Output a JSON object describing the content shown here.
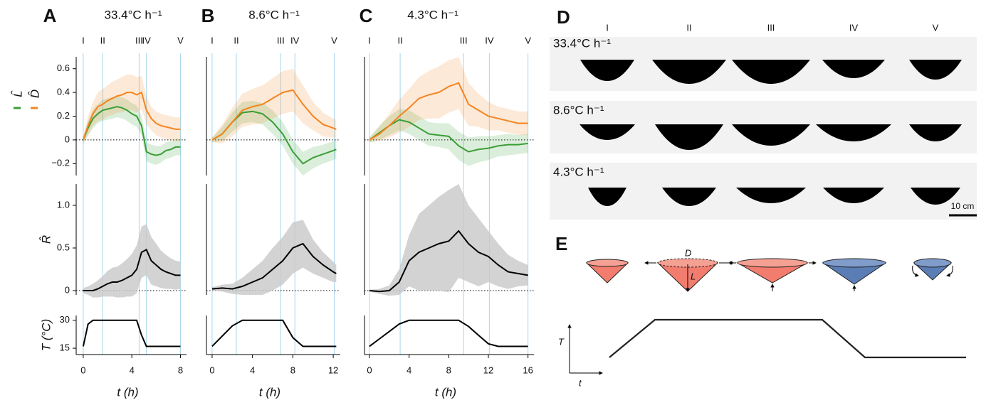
{
  "chart_data": [
    {
      "type": "line",
      "label": "A",
      "title": "33.4°C h⁻¹",
      "xlabel": "t (h)",
      "xlim": [
        -0.58,
        8.5
      ],
      "xticks": [
        0,
        4,
        8
      ],
      "phases": {
        "labels": [
          "I",
          "II",
          "III",
          "IV",
          "V"
        ],
        "x": [
          0,
          1.6,
          4.6,
          5.2,
          8.0
        ]
      },
      "x": [
        0,
        0.4,
        0.8,
        1.2,
        1.6,
        2.0,
        2.4,
        2.8,
        3.2,
        3.6,
        4.0,
        4.4,
        4.8,
        5.2,
        5.6,
        6.0,
        6.4,
        6.8,
        7.2,
        7.6,
        8.0
      ],
      "subplots": [
        {
          "ylim": [
            -0.3,
            0.7
          ],
          "yticks": [
            {
              "value": -0.2,
              "label": "−0.2"
            },
            0,
            0.2,
            0.4,
            0.6
          ],
          "zero_line": true,
          "series": [
            {
              "name": "L̂",
              "color": "#3a9e35",
              "values": [
                0,
                0.1,
                0.18,
                0.22,
                0.25,
                0.26,
                0.27,
                0.28,
                0.27,
                0.25,
                0.22,
                0.2,
                0.12,
                -0.1,
                -0.12,
                -0.13,
                -0.12,
                -0.09,
                -0.08,
                -0.06,
                -0.06
              ],
              "error": [
                0.03,
                0.06,
                0.08,
                0.08,
                0.09,
                0.09,
                0.09,
                0.09,
                0.09,
                0.09,
                0.09,
                0.09,
                0.08,
                0.08,
                0.08,
                0.08,
                0.07,
                0.07,
                0.07,
                0.07,
                0.07
              ]
            },
            {
              "name": "D̂",
              "color": "#f5841f",
              "values": [
                0,
                0.12,
                0.22,
                0.28,
                0.3,
                0.33,
                0.35,
                0.37,
                0.38,
                0.4,
                0.4,
                0.38,
                0.4,
                0.25,
                0.18,
                0.14,
                0.12,
                0.11,
                0.1,
                0.09,
                0.09
              ],
              "error": [
                0.03,
                0.08,
                0.1,
                0.12,
                0.13,
                0.13,
                0.14,
                0.14,
                0.15,
                0.15,
                0.15,
                0.15,
                0.14,
                0.12,
                0.1,
                0.1,
                0.1,
                0.1,
                0.1,
                0.1,
                0.1
              ]
            }
          ]
        },
        {
          "ylim": [
            -0.05,
            1.25
          ],
          "yticks": [
            0,
            0.5,
            {
              "value": 1.0,
              "label": "1.0"
            }
          ],
          "ylabel": "R̂",
          "zero_line": true,
          "series": [
            {
              "color": "#000000",
              "values": [
                0,
                0,
                0,
                0.02,
                0.05,
                0.08,
                0.1,
                0.1,
                0.12,
                0.15,
                0.18,
                0.25,
                0.45,
                0.48,
                0.35,
                0.3,
                0.25,
                0.22,
                0.2,
                0.18,
                0.18
              ],
              "error": [
                0.03,
                0.05,
                0.08,
                0.1,
                0.12,
                0.15,
                0.17,
                0.18,
                0.2,
                0.22,
                0.25,
                0.28,
                0.3,
                0.3,
                0.28,
                0.25,
                0.22,
                0.2,
                0.18,
                0.17,
                0.16
              ]
            }
          ]
        },
        {
          "ylim": [
            11.6,
            32.6
          ],
          "yticks": [
            15,
            30
          ],
          "ylabel": "T (°C)",
          "series": [
            {
              "color": "#000000",
              "values": [
                16,
                28,
                30,
                30,
                30,
                30,
                30,
                30,
                30,
                30,
                30,
                30,
                22,
                16,
                16,
                16,
                16,
                16,
                16,
                16,
                16
              ]
            }
          ]
        }
      ]
    },
    {
      "type": "line",
      "label": "B",
      "title": "8.6°C h⁻¹",
      "xlabel": "t (h)",
      "xlim": [
        -0.56,
        12.7
      ],
      "xticks": [
        0,
        4,
        8,
        12
      ],
      "phases": {
        "labels": [
          "I",
          "II",
          "III",
          "IV",
          "V"
        ],
        "x": [
          0,
          2.4,
          6.8,
          8.2,
          12.1
        ]
      },
      "x": [
        0,
        1,
        2,
        3,
        4,
        5,
        6,
        7,
        8,
        9,
        10,
        11,
        12,
        12.3
      ],
      "subplots": [
        {
          "ylim": [
            -0.3,
            0.7
          ],
          "zero_line": true,
          "series": [
            {
              "color": "#3a9e35",
              "values": [
                0,
                0.05,
                0.15,
                0.23,
                0.24,
                0.22,
                0.15,
                0.05,
                -0.1,
                -0.2,
                -0.15,
                -0.12,
                -0.09,
                -0.08
              ],
              "error": [
                0.02,
                0.06,
                0.08,
                0.09,
                0.09,
                0.09,
                0.1,
                0.1,
                0.1,
                0.1,
                0.09,
                0.08,
                0.08,
                0.08
              ]
            },
            {
              "color": "#f5841f",
              "values": [
                0,
                0.05,
                0.15,
                0.25,
                0.28,
                0.3,
                0.35,
                0.4,
                0.42,
                0.3,
                0.2,
                0.13,
                0.1,
                0.09
              ],
              "error": [
                0.02,
                0.08,
                0.12,
                0.14,
                0.15,
                0.16,
                0.17,
                0.18,
                0.18,
                0.16,
                0.12,
                0.1,
                0.08,
                0.08
              ]
            }
          ]
        },
        {
          "ylim": [
            -0.05,
            1.25
          ],
          "zero_line": true,
          "series": [
            {
              "color": "#000000",
              "values": [
                0.02,
                0.03,
                0.02,
                0.05,
                0.1,
                0.15,
                0.25,
                0.35,
                0.5,
                0.55,
                0.4,
                0.3,
                0.22,
                0.2
              ],
              "error": [
                0.02,
                0.04,
                0.06,
                0.1,
                0.15,
                0.2,
                0.25,
                0.28,
                0.3,
                0.28,
                0.2,
                0.15,
                0.12,
                0.1
              ]
            }
          ]
        },
        {
          "ylim": [
            11.6,
            32.6
          ],
          "series": [
            {
              "color": "#000000",
              "values": [
                16,
                21.5,
                27,
                30,
                30,
                30,
                30,
                30,
                20.7,
                16,
                16,
                16,
                16,
                16
              ]
            }
          ]
        }
      ]
    },
    {
      "type": "line",
      "label": "C",
      "title": "4.3°C h⁻¹",
      "xlabel": "t (h)",
      "xlim": [
        -0.5,
        16.6
      ],
      "xticks": [
        0,
        4,
        8,
        12,
        16
      ],
      "phases": {
        "labels": [
          "I",
          "II",
          "III",
          "IV",
          "V"
        ],
        "x": [
          0,
          3.1,
          9.5,
          12.1,
          16
        ]
      },
      "x": [
        0,
        1,
        2,
        3,
        4,
        5,
        6,
        7,
        8,
        9,
        10,
        11,
        12,
        13,
        14,
        15,
        16
      ],
      "subplots": [
        {
          "ylim": [
            -0.3,
            0.7
          ],
          "zero_line": true,
          "series": [
            {
              "color": "#3a9e35",
              "values": [
                0,
                0.06,
                0.12,
                0.17,
                0.15,
                0.1,
                0.05,
                0.04,
                0.03,
                -0.05,
                -0.1,
                -0.08,
                -0.07,
                -0.05,
                -0.04,
                -0.04,
                -0.03
              ],
              "error": [
                0.02,
                0.06,
                0.08,
                0.09,
                0.1,
                0.1,
                0.1,
                0.1,
                0.11,
                0.12,
                0.12,
                0.11,
                0.1,
                0.09,
                0.09,
                0.08,
                0.08
              ]
            },
            {
              "color": "#f5841f",
              "values": [
                0,
                0.05,
                0.12,
                0.2,
                0.27,
                0.35,
                0.38,
                0.4,
                0.45,
                0.48,
                0.3,
                0.25,
                0.2,
                0.18,
                0.16,
                0.14,
                0.14
              ],
              "error": [
                0.02,
                0.06,
                0.1,
                0.14,
                0.16,
                0.18,
                0.2,
                0.22,
                0.22,
                0.22,
                0.18,
                0.14,
                0.12,
                0.1,
                0.1,
                0.1,
                0.1
              ]
            }
          ]
        },
        {
          "ylim": [
            -0.05,
            1.25
          ],
          "zero_line": true,
          "series": [
            {
              "color": "#000000",
              "values": [
                0,
                -0.01,
                0,
                0.1,
                0.35,
                0.45,
                0.5,
                0.55,
                0.58,
                0.7,
                0.55,
                0.45,
                0.4,
                0.3,
                0.22,
                0.2,
                0.18
              ],
              "error": [
                0.01,
                0.03,
                0.06,
                0.15,
                0.3,
                0.45,
                0.5,
                0.55,
                0.6,
                0.55,
                0.45,
                0.4,
                0.3,
                0.25,
                0.2,
                0.15,
                0.12
              ]
            }
          ]
        },
        {
          "ylim": [
            11.6,
            32.6
          ],
          "series": [
            {
              "color": "#000000",
              "values": [
                16,
                20,
                24,
                28,
                30,
                30,
                30,
                30,
                30,
                30,
                26.7,
                22,
                17.4,
                16,
                16,
                16,
                16
              ]
            }
          ]
        }
      ]
    }
  ],
  "panel_d": {
    "label": "D",
    "columns": [
      "I",
      "II",
      "III",
      "IV",
      "V"
    ],
    "rows": [
      "33.4°C h⁻¹",
      "8.6°C h⁻¹",
      "4.3°C h⁻¹"
    ],
    "scale_bar": "10 cm"
  },
  "panel_e": {
    "label": "E",
    "cone_labels": [
      "D",
      "L"
    ],
    "axis_labels": [
      "T",
      "t"
    ]
  }
}
